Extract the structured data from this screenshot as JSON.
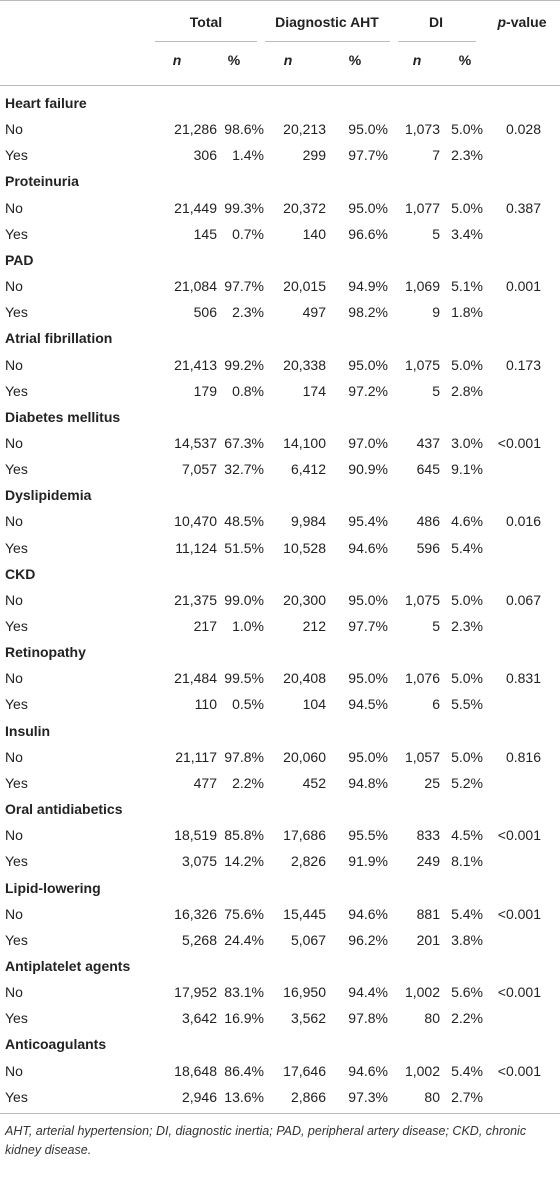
{
  "header": {
    "groups": [
      "Total",
      "Diagnostic AHT",
      "DI"
    ],
    "pvalue": {
      "italic": "p",
      "text": "-value"
    },
    "sub": [
      "n",
      "%",
      "n",
      "%",
      "n",
      "%"
    ]
  },
  "sections": [
    {
      "title": "Heart failure",
      "rows": [
        {
          "label": "No",
          "cells": [
            "21,286",
            "98.6%",
            "20,213",
            "95.0%",
            "1,073",
            "5.0%"
          ],
          "p": "0.028"
        },
        {
          "label": "Yes",
          "cells": [
            "306",
            "1.4%",
            "299",
            "97.7%",
            "7",
            "2.3%"
          ]
        }
      ]
    },
    {
      "title": "Proteinuria",
      "rows": [
        {
          "label": "No",
          "cells": [
            "21,449",
            "99.3%",
            "20,372",
            "95.0%",
            "1,077",
            "5.0%"
          ],
          "p": "0.387"
        },
        {
          "label": "Yes",
          "cells": [
            "145",
            "0.7%",
            "140",
            "96.6%",
            "5",
            "3.4%"
          ]
        }
      ]
    },
    {
      "title": "PAD",
      "rows": [
        {
          "label": "No",
          "cells": [
            "21,084",
            "97.7%",
            "20,015",
            "94.9%",
            "1,069",
            "5.1%"
          ],
          "p": "0.001"
        },
        {
          "label": "Yes",
          "cells": [
            "506",
            "2.3%",
            "497",
            "98.2%",
            "9",
            "1.8%"
          ]
        }
      ]
    },
    {
      "title": "Atrial fibrillation",
      "rows": [
        {
          "label": "No",
          "cells": [
            "21,413",
            "99.2%",
            "20,338",
            "95.0%",
            "1,075",
            "5.0%"
          ],
          "p": "0.173"
        },
        {
          "label": "Yes",
          "cells": [
            "179",
            "0.8%",
            "174",
            "97.2%",
            "5",
            "2.8%"
          ]
        }
      ]
    },
    {
      "title": "Diabetes mellitus",
      "rows": [
        {
          "label": "No",
          "cells": [
            "14,537",
            "67.3%",
            "14,100",
            "97.0%",
            "437",
            "3.0%"
          ],
          "p": "<0.001"
        },
        {
          "label": "Yes",
          "cells": [
            "7,057",
            "32.7%",
            "6,412",
            "90.9%",
            "645",
            "9.1%"
          ]
        }
      ]
    },
    {
      "title": "Dyslipidemia",
      "rows": [
        {
          "label": "No",
          "cells": [
            "10,470",
            "48.5%",
            "9,984",
            "95.4%",
            "486",
            "4.6%"
          ],
          "p": "0.016"
        },
        {
          "label": "Yes",
          "cells": [
            "11,124",
            "51.5%",
            "10,528",
            "94.6%",
            "596",
            "5.4%"
          ]
        }
      ]
    },
    {
      "title": "CKD",
      "rows": [
        {
          "label": "No",
          "cells": [
            "21,375",
            "99.0%",
            "20,300",
            "95.0%",
            "1,075",
            "5.0%"
          ],
          "p": "0.067"
        },
        {
          "label": "Yes",
          "cells": [
            "217",
            "1.0%",
            "212",
            "97.7%",
            "5",
            "2.3%"
          ]
        }
      ]
    },
    {
      "title": "Retinopathy",
      "rows": [
        {
          "label": "No",
          "cells": [
            "21,484",
            "99.5%",
            "20,408",
            "95.0%",
            "1,076",
            "5.0%"
          ],
          "p": "0.831"
        },
        {
          "label": "Yes",
          "cells": [
            "110",
            "0.5%",
            "104",
            "94.5%",
            "6",
            "5.5%"
          ]
        }
      ]
    },
    {
      "title": "Insulin",
      "rows": [
        {
          "label": "No",
          "cells": [
            "21,117",
            "97.8%",
            "20,060",
            "95.0%",
            "1,057",
            "5.0%"
          ],
          "p": "0.816"
        },
        {
          "label": "Yes",
          "cells": [
            "477",
            "2.2%",
            "452",
            "94.8%",
            "25",
            "5.2%"
          ]
        }
      ]
    },
    {
      "title": "Oral antidiabetics",
      "rows": [
        {
          "label": "No",
          "cells": [
            "18,519",
            "85.8%",
            "17,686",
            "95.5%",
            "833",
            "4.5%"
          ],
          "p": "<0.001"
        },
        {
          "label": "Yes",
          "cells": [
            "3,075",
            "14.2%",
            "2,826",
            "91.9%",
            "249",
            "8.1%"
          ]
        }
      ]
    },
    {
      "title": "Lipid-lowering",
      "rows": [
        {
          "label": "No",
          "cells": [
            "16,326",
            "75.6%",
            "15,445",
            "94.6%",
            "881",
            "5.4%"
          ],
          "p": "<0.001"
        },
        {
          "label": "Yes",
          "cells": [
            "5,268",
            "24.4%",
            "5,067",
            "96.2%",
            "201",
            "3.8%"
          ]
        }
      ]
    },
    {
      "title": "Antiplatelet agents",
      "rows": [
        {
          "label": "No",
          "cells": [
            "17,952",
            "83.1%",
            "16,950",
            "94.4%",
            "1,002",
            "5.6%"
          ],
          "p": "<0.001"
        },
        {
          "label": "Yes",
          "cells": [
            "3,642",
            "16.9%",
            "3,562",
            "97.8%",
            "80",
            "2.2%"
          ]
        }
      ]
    },
    {
      "title": "Anticoagulants",
      "rows": [
        {
          "label": "No",
          "cells": [
            "18,648",
            "86.4%",
            "17,646",
            "94.6%",
            "1,002",
            "5.4%"
          ],
          "p": "<0.001"
        },
        {
          "label": "Yes",
          "cells": [
            "2,946",
            "13.6%",
            "2,866",
            "97.3%",
            "80",
            "2.7%"
          ]
        }
      ]
    }
  ],
  "footnote": "AHT, arterial hypertension; DI, diagnostic inertia; PAD, peripheral artery disease; CKD, chronic kidney disease."
}
